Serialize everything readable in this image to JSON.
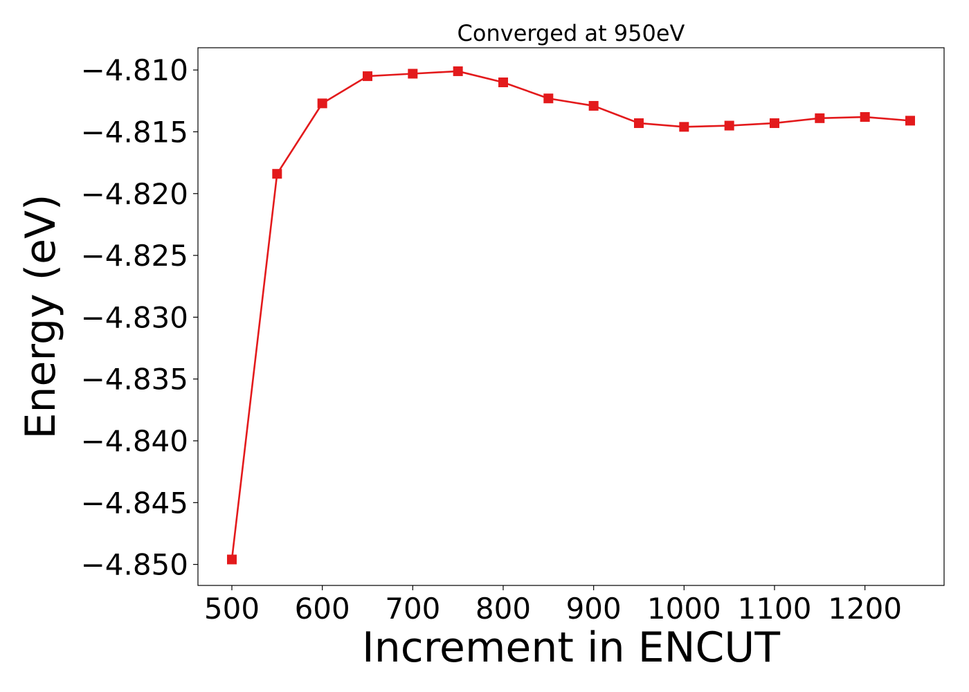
{
  "chart_data": {
    "type": "line",
    "title": "Converged at 950eV",
    "xlabel": "Increment in ENCUT",
    "ylabel": "Energy (eV)",
    "xlim": [
      462.5,
      1287.5
    ],
    "ylim": [
      -4.8517,
      -4.8082
    ],
    "x_ticks": [
      500,
      600,
      700,
      800,
      900,
      1000,
      1100,
      1200
    ],
    "x_tick_labels": [
      "500",
      "600",
      "700",
      "800",
      "900",
      "1000",
      "1100",
      "1200"
    ],
    "y_ticks": [
      -4.81,
      -4.815,
      -4.82,
      -4.825,
      -4.83,
      -4.835,
      -4.84,
      -4.845,
      -4.85
    ],
    "y_tick_labels": [
      "−4.810",
      "−4.815",
      "−4.820",
      "−4.825",
      "−4.830",
      "−4.835",
      "−4.840",
      "−4.845",
      "−4.850"
    ],
    "grid": false,
    "legend": false,
    "marker": "square",
    "series": [
      {
        "color": "#e31a1c",
        "x": [
          500,
          550,
          600,
          650,
          700,
          750,
          800,
          850,
          900,
          950,
          1000,
          1050,
          1100,
          1150,
          1200,
          1250
        ],
        "y": [
          -4.8496,
          -4.8184,
          -4.8127,
          -4.8105,
          -4.8103,
          -4.8101,
          -4.811,
          -4.8123,
          -4.8129,
          -4.8143,
          -4.8146,
          -4.8145,
          -4.8143,
          -4.8139,
          -4.8138,
          -4.8141
        ]
      }
    ]
  }
}
